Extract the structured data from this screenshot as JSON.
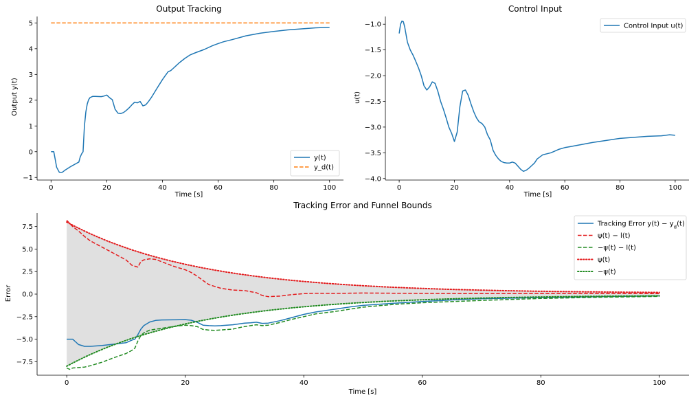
{
  "chart_data": [
    {
      "type": "line",
      "title": "Output Tracking",
      "xlabel": "Time [s]",
      "ylabel": "Output y(t)",
      "xlim": [
        -5,
        105
      ],
      "ylim": [
        -1.1,
        5.25
      ],
      "xticks": [
        0,
        20,
        40,
        60,
        80,
        100
      ],
      "yticks": [
        -1,
        0,
        1,
        2,
        3,
        4,
        5
      ],
      "legend_position": "lower-right",
      "grid": false,
      "series": [
        {
          "name": "y(t)",
          "color": "#1f77b4",
          "style": "solid",
          "x": [
            0,
            1,
            1.5,
            2,
            3,
            4,
            5,
            6,
            7,
            8,
            9,
            10,
            10.5,
            11,
            11.5,
            12,
            12.5,
            13,
            13.5,
            14,
            15,
            16,
            18,
            19,
            20,
            21,
            22,
            23,
            24,
            25,
            26,
            27,
            28,
            29,
            30,
            31,
            32,
            33,
            34,
            35,
            36,
            38,
            40,
            41,
            42,
            43,
            44,
            46,
            48,
            50,
            52,
            55,
            58,
            60,
            62,
            65,
            70,
            75,
            80,
            85,
            90,
            95,
            100
          ],
          "y": [
            0,
            0,
            -0.3,
            -0.6,
            -0.8,
            -0.8,
            -0.72,
            -0.65,
            -0.58,
            -0.52,
            -0.46,
            -0.4,
            -0.2,
            -0.08,
            0,
            1.0,
            1.55,
            1.85,
            2.02,
            2.1,
            2.15,
            2.15,
            2.14,
            2.16,
            2.2,
            2.1,
            2.02,
            1.65,
            1.5,
            1.48,
            1.52,
            1.6,
            1.7,
            1.82,
            1.92,
            1.9,
            1.95,
            1.78,
            1.82,
            1.95,
            2.1,
            2.45,
            2.8,
            2.95,
            3.1,
            3.15,
            3.25,
            3.45,
            3.62,
            3.76,
            3.85,
            3.97,
            4.12,
            4.2,
            4.27,
            4.35,
            4.5,
            4.6,
            4.67,
            4.73,
            4.77,
            4.81,
            4.83
          ]
        },
        {
          "name": "y_d(t)",
          "color": "#ff7f0e",
          "style": "dashed",
          "x": [
            0,
            100
          ],
          "y": [
            5,
            5
          ]
        }
      ]
    },
    {
      "type": "line",
      "title": "Control Input",
      "xlabel": "Time [s]",
      "ylabel": "u(t)",
      "xlim": [
        -5,
        105
      ],
      "ylim": [
        -4.03,
        -0.85
      ],
      "xticks": [
        0,
        20,
        40,
        60,
        80,
        100
      ],
      "yticks": [
        -4.0,
        -3.5,
        -3.0,
        -2.5,
        -2.0,
        -1.5,
        -1.0
      ],
      "legend_position": "top-right",
      "grid": false,
      "series": [
        {
          "name": "Control Input u(t)",
          "color": "#1f77b4",
          "style": "solid",
          "x": [
            0,
            0.5,
            1,
            1.5,
            2,
            2.5,
            3,
            4,
            5,
            6,
            7,
            8,
            9,
            10,
            11,
            12,
            13,
            14,
            15,
            16,
            17,
            18,
            19,
            20,
            21,
            22,
            23,
            24,
            25,
            26,
            27,
            28,
            29,
            30,
            31,
            32,
            33,
            34,
            35,
            36,
            37,
            38,
            39,
            40,
            41,
            42,
            43,
            44,
            45,
            46,
            47,
            48,
            49,
            50,
            52,
            55,
            58,
            60,
            62,
            65,
            70,
            75,
            80,
            85,
            90,
            95,
            98,
            100
          ],
          "y": [
            -1.18,
            -1.0,
            -0.94,
            -0.95,
            -1.05,
            -1.2,
            -1.35,
            -1.5,
            -1.6,
            -1.72,
            -1.85,
            -2.0,
            -2.2,
            -2.28,
            -2.22,
            -2.12,
            -2.15,
            -2.3,
            -2.5,
            -2.65,
            -2.82,
            -3.0,
            -3.12,
            -3.28,
            -3.1,
            -2.6,
            -2.3,
            -2.28,
            -2.38,
            -2.55,
            -2.7,
            -2.82,
            -2.9,
            -2.93,
            -3.0,
            -3.15,
            -3.25,
            -3.45,
            -3.55,
            -3.62,
            -3.67,
            -3.69,
            -3.7,
            -3.7,
            -3.68,
            -3.7,
            -3.76,
            -3.82,
            -3.86,
            -3.84,
            -3.8,
            -3.75,
            -3.7,
            -3.62,
            -3.54,
            -3.5,
            -3.43,
            -3.4,
            -3.38,
            -3.35,
            -3.3,
            -3.26,
            -3.22,
            -3.2,
            -3.18,
            -3.17,
            -3.15,
            -3.16
          ]
        }
      ]
    },
    {
      "type": "line",
      "title": "Tracking Error and Funnel Bounds",
      "xlabel": "Time [s]",
      "ylabel": "Error",
      "xlim": [
        -5,
        105
      ],
      "ylim": [
        -9.0,
        9.0
      ],
      "xticks": [
        0,
        20,
        40,
        60,
        80,
        100
      ],
      "yticks": [
        -7.5,
        -5.0,
        -2.5,
        0.0,
        2.5,
        5.0,
        7.5
      ],
      "xtick_labels": [
        "0",
        "20",
        "40",
        "60",
        "80",
        "100"
      ],
      "ytick_labels": [
        "−7.5",
        "−5.0",
        "−2.5",
        "0.0",
        "2.5",
        "5.0",
        "7.5"
      ],
      "legend_position": "top-right",
      "grid": false,
      "funnel_fill": "#e0e0e0",
      "legend": [
        {
          "label": "Tracking Error y(t) − y",
          "sub": "d",
          "tail": "(t)",
          "color": "#1f77b4",
          "style": "solid"
        },
        {
          "label": "ψ(t) − l(t)",
          "color": "#e31a1c",
          "style": "dashed"
        },
        {
          "label": "−ψ(t) − l(t)",
          "color": "#228b22",
          "style": "dashed"
        },
        {
          "label": "ψ(t)",
          "color": "#e31a1c",
          "style": "dotted"
        },
        {
          "label": "−ψ(t)",
          "color": "#228b22",
          "style": "dotted"
        }
      ],
      "series": [
        {
          "name": "Tracking Error",
          "color": "#1f77b4",
          "style": "solid",
          "x": [
            0,
            1,
            1.5,
            2,
            3,
            4,
            6,
            8,
            10,
            11,
            11.5,
            12,
            12.5,
            13,
            14,
            15,
            16,
            18,
            20,
            21,
            22,
            23,
            24,
            25,
            26,
            28,
            30,
            31,
            32,
            33,
            34,
            36,
            38,
            40,
            42,
            45,
            48,
            50,
            55,
            60,
            65,
            70,
            80,
            90,
            100
          ],
          "y": [
            -5.0,
            -5.0,
            -5.3,
            -5.6,
            -5.8,
            -5.8,
            -5.7,
            -5.55,
            -5.4,
            -5.1,
            -5.0,
            -4.5,
            -3.9,
            -3.5,
            -3.1,
            -2.92,
            -2.87,
            -2.85,
            -2.83,
            -2.9,
            -3.12,
            -3.45,
            -3.5,
            -3.52,
            -3.5,
            -3.4,
            -3.22,
            -3.18,
            -3.12,
            -3.25,
            -3.22,
            -2.95,
            -2.6,
            -2.25,
            -1.98,
            -1.7,
            -1.4,
            -1.25,
            -1.02,
            -0.82,
            -0.65,
            -0.52,
            -0.38,
            -0.28,
            -0.2
          ]
        },
        {
          "name": "ψ(t) − l(t)",
          "color": "#e31a1c",
          "style": "dashed",
          "x": [
            0,
            1,
            2,
            3,
            4,
            6,
            8,
            10,
            11,
            11.5,
            12,
            12.5,
            13,
            14,
            15,
            16,
            18,
            20,
            21,
            22,
            23,
            24,
            26,
            28,
            30,
            32,
            33,
            34,
            35,
            36,
            38,
            40,
            42,
            45,
            50,
            55,
            60,
            70,
            80,
            90,
            100
          ],
          "y": [
            8.2,
            7.5,
            7.0,
            6.4,
            5.9,
            5.2,
            4.5,
            3.8,
            3.2,
            3.1,
            3.0,
            3.6,
            3.8,
            3.92,
            3.85,
            3.6,
            3.1,
            2.7,
            2.4,
            2.0,
            1.5,
            1.05,
            0.65,
            0.45,
            0.4,
            0.15,
            -0.15,
            -0.28,
            -0.25,
            -0.22,
            -0.05,
            0.05,
            0.1,
            0.08,
            0.12,
            0.1,
            0.08,
            0.05,
            0.05,
            0.05,
            0.05
          ]
        },
        {
          "name": "−ψ(t) − l(t)",
          "color": "#228b22",
          "style": "dashed",
          "x": [
            0,
            0.5,
            1,
            2,
            3,
            4,
            6,
            8,
            10,
            11,
            11.5,
            12,
            12.5,
            13,
            14,
            15,
            16,
            18,
            20,
            21,
            22,
            23,
            24,
            25,
            26,
            28,
            30,
            32,
            33,
            34,
            36,
            38,
            40,
            42,
            45,
            50,
            55,
            60,
            70,
            80,
            90,
            100
          ],
          "y": [
            -8.2,
            -8.35,
            -8.2,
            -8.15,
            -8.1,
            -7.95,
            -7.55,
            -7.05,
            -6.6,
            -6.25,
            -6.0,
            -5.2,
            -4.6,
            -4.3,
            -4.0,
            -3.9,
            -3.8,
            -3.6,
            -3.45,
            -3.5,
            -3.6,
            -3.92,
            -4.0,
            -4.02,
            -3.98,
            -3.88,
            -3.6,
            -3.4,
            -3.5,
            -3.45,
            -3.15,
            -2.8,
            -2.5,
            -2.2,
            -1.95,
            -1.45,
            -1.15,
            -0.95,
            -0.7,
            -0.48,
            -0.35,
            -0.25
          ]
        },
        {
          "name": "ψ(t)",
          "color": "#e31a1c",
          "style": "dotted",
          "fn": "psi"
        },
        {
          "name": "−ψ(t)",
          "color": "#228b22",
          "style": "dotted",
          "fn": "neg_psi"
        }
      ]
    }
  ]
}
